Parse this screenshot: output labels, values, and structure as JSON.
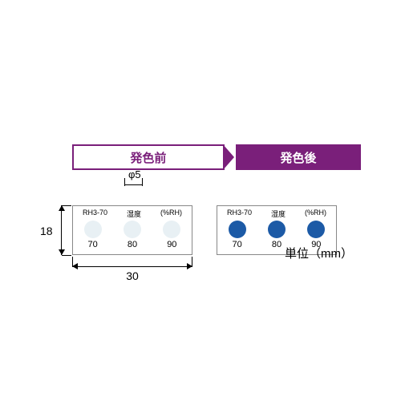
{
  "header": {
    "left_label": "発色前",
    "right_label": "発色後",
    "left_border_color": "#7a1f7a",
    "left_text_color": "#7a1f7a",
    "left_bg": "#ffffff",
    "right_bg": "#7a1f7a",
    "right_text_color": "#ffffff"
  },
  "card_left": {
    "top_labels": [
      "RH3-70",
      "湿度",
      "(%RH)"
    ],
    "circle_color": "#e8f0f4",
    "values": [
      "70",
      "80",
      "90"
    ]
  },
  "card_right": {
    "top_labels": [
      "RH3-70",
      "湿度",
      "(%RH)"
    ],
    "circle_color": "#1c5aa6",
    "values": [
      "70",
      "80",
      "90"
    ]
  },
  "dimensions": {
    "height_label": "18",
    "width_label": "30",
    "diameter_label": "φ5"
  },
  "unit_text": "単位（mm）",
  "colors": {
    "text": "#000000",
    "card_border": "#888888"
  }
}
